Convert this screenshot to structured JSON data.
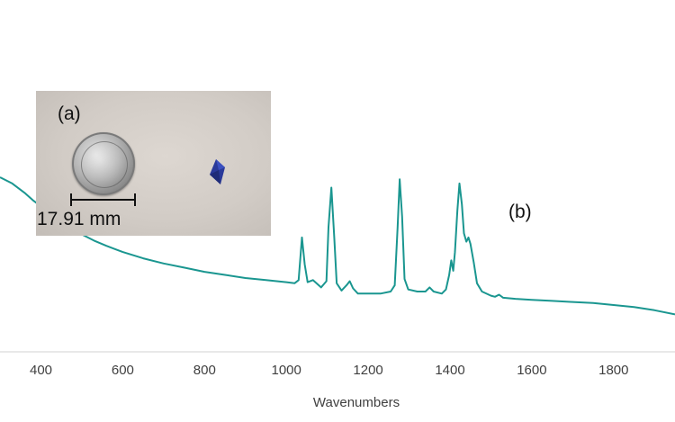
{
  "chart_data": {
    "type": "line",
    "xlabel": "Wavenumbers",
    "ylabel": "",
    "xlim": [
      300,
      1950
    ],
    "ylim": [
      0,
      1
    ],
    "x_ticks": [
      "400",
      "600",
      "800",
      "1000",
      "1200",
      "1400",
      "1600",
      "1800"
    ],
    "grid": false,
    "series": [
      {
        "color": "#1a9690",
        "points": [
          [
            300,
            0.84
          ],
          [
            330,
            0.81
          ],
          [
            360,
            0.765
          ],
          [
            380,
            0.73
          ],
          [
            400,
            0.7
          ],
          [
            430,
            0.655
          ],
          [
            460,
            0.615
          ],
          [
            500,
            0.565
          ],
          [
            530,
            0.535
          ],
          [
            560,
            0.51
          ],
          [
            600,
            0.48
          ],
          [
            650,
            0.45
          ],
          [
            700,
            0.425
          ],
          [
            750,
            0.405
          ],
          [
            800,
            0.385
          ],
          [
            850,
            0.37
          ],
          [
            900,
            0.355
          ],
          [
            950,
            0.345
          ],
          [
            1000,
            0.335
          ],
          [
            1020,
            0.33
          ],
          [
            1030,
            0.345
          ],
          [
            1038,
            0.55
          ],
          [
            1045,
            0.42
          ],
          [
            1052,
            0.335
          ],
          [
            1065,
            0.345
          ],
          [
            1085,
            0.31
          ],
          [
            1098,
            0.34
          ],
          [
            1103,
            0.6
          ],
          [
            1110,
            0.79
          ],
          [
            1117,
            0.55
          ],
          [
            1123,
            0.33
          ],
          [
            1135,
            0.295
          ],
          [
            1147,
            0.32
          ],
          [
            1155,
            0.34
          ],
          [
            1163,
            0.305
          ],
          [
            1175,
            0.28
          ],
          [
            1200,
            0.28
          ],
          [
            1230,
            0.28
          ],
          [
            1255,
            0.29
          ],
          [
            1265,
            0.32
          ],
          [
            1272,
            0.6
          ],
          [
            1277,
            0.83
          ],
          [
            1283,
            0.65
          ],
          [
            1289,
            0.35
          ],
          [
            1298,
            0.3
          ],
          [
            1320,
            0.29
          ],
          [
            1340,
            0.29
          ],
          [
            1350,
            0.31
          ],
          [
            1360,
            0.29
          ],
          [
            1380,
            0.28
          ],
          [
            1390,
            0.3
          ],
          [
            1398,
            0.37
          ],
          [
            1403,
            0.44
          ],
          [
            1408,
            0.39
          ],
          [
            1412,
            0.48
          ],
          [
            1418,
            0.68
          ],
          [
            1423,
            0.81
          ],
          [
            1429,
            0.71
          ],
          [
            1434,
            0.57
          ],
          [
            1440,
            0.53
          ],
          [
            1445,
            0.55
          ],
          [
            1450,
            0.52
          ],
          [
            1458,
            0.43
          ],
          [
            1466,
            0.33
          ],
          [
            1478,
            0.29
          ],
          [
            1500,
            0.27
          ],
          [
            1510,
            0.265
          ],
          [
            1520,
            0.275
          ],
          [
            1530,
            0.26
          ],
          [
            1560,
            0.255
          ],
          [
            1600,
            0.25
          ],
          [
            1650,
            0.245
          ],
          [
            1700,
            0.24
          ],
          [
            1750,
            0.235
          ],
          [
            1800,
            0.225
          ],
          [
            1850,
            0.215
          ],
          [
            1900,
            0.2
          ],
          [
            1950,
            0.18
          ]
        ]
      }
    ]
  },
  "panel_label_b": "(b)",
  "inset": {
    "label": "(a)",
    "scale_text": "17.91 mm"
  },
  "colors": {
    "line": "#1a9690",
    "axis": "#d0d0d0",
    "text": "#404040"
  }
}
